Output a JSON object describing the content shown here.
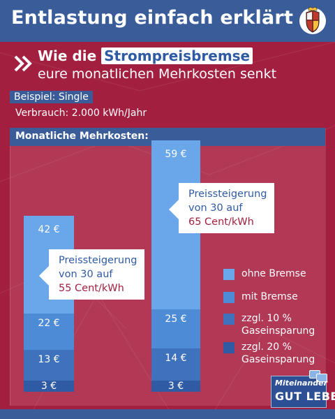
{
  "header": {
    "title": "Entlastung einfach erklärt"
  },
  "subtitle": {
    "prefix": "Wie die ",
    "highlight": "Strompreisbremse",
    "line2": "eure monatlichen Mehrkosten senkt"
  },
  "example": {
    "label": "Beispiel: Single",
    "consumption": "Verbrauch: 2.000 kWh/Jahr"
  },
  "chart_data": {
    "type": "bar",
    "stacked": true,
    "title": "Monatliche Mehrkosten:",
    "unit": "€",
    "categories": [
      "",
      ""
    ],
    "series": [
      {
        "name": "zzgl. 20 % Gaseinsparung",
        "values": [
          3,
          3
        ]
      },
      {
        "name": "zzgl. 10 % Gaseinsparung",
        "values": [
          10,
          11
        ]
      },
      {
        "name": "mit Bremse",
        "values": [
          9,
          11
        ]
      },
      {
        "name": "ohne Bremse",
        "values": [
          20,
          34
        ]
      }
    ],
    "totals": {
      "ohne Bremse": [
        42,
        59
      ],
      "mit Bremse": [
        22,
        25
      ],
      "zzgl. 10 % Gaseinsparung": [
        13,
        14
      ],
      "zzgl. 20 % Gaseinsparung": [
        3,
        3
      ]
    },
    "value_labels": [
      [
        "3 €",
        "13 €",
        "22 €",
        "42 €"
      ],
      [
        "3 €",
        "14 €",
        "25 €",
        "59 €"
      ]
    ],
    "annotations": [
      {
        "line1": "Preissteigerung",
        "line2": "von 30 auf",
        "line3": "55 Cent/kWh"
      },
      {
        "line1": "Preissteigerung",
        "line2": "von 30 auf",
        "line3": "65 Cent/kWh"
      }
    ],
    "legend": [
      {
        "label": "ohne Bremse",
        "color": "#6aa6ea"
      },
      {
        "label": "mit Bremse",
        "color": "#4e8bd6"
      },
      {
        "label": "zzgl. 10 %",
        "label2": "Gaseinsparung",
        "color": "#3e72bd"
      },
      {
        "label": "zzgl. 20 %",
        "label2": "Gaseinsparung",
        "color": "#2f5aa4"
      }
    ]
  },
  "logo": {
    "line1": "Miteinander",
    "line2": "GUT LEBEN"
  },
  "colors": {
    "background": "#a31f3f",
    "header": "#3a5d9a",
    "accent_red": "#a31f3f"
  }
}
